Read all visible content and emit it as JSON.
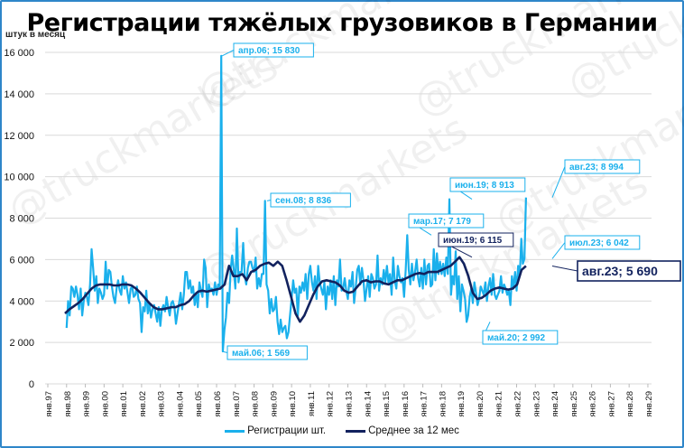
{
  "title": "Регистрации тяжёлых грузовиков в Германии",
  "unit_label": "штук в месяц",
  "watermark": "@truckmarkets",
  "colors": {
    "registrations": "#1ab0ec",
    "average": "#12225e",
    "grid": "#d9d9d9",
    "frame": "#2e86c9"
  },
  "chart_data": {
    "type": "line",
    "title": "Регистрации тяжёлых грузовиков в Германии",
    "xlabel": "",
    "ylabel": "штук в месяц",
    "ylim": [
      0,
      16000
    ],
    "yticks": [
      "0",
      "2 000",
      "4 000",
      "6 000",
      "8 000",
      "10 000",
      "12 000",
      "14 000",
      "16 000"
    ],
    "xticks": [
      "янв.97",
      "янв.98",
      "янв.99",
      "янв.00",
      "янв.01",
      "янв.02",
      "янв.03",
      "янв.04",
      "янв.05",
      "янв.06",
      "янв.07",
      "янв.08",
      "янв.09",
      "янв.10",
      "янв.11",
      "янв.12",
      "янв.13",
      "янв.14",
      "янв.15",
      "янв.16",
      "янв.17",
      "янв.18",
      "янв.19",
      "янв.20",
      "янв.21",
      "янв.22",
      "янв.23",
      "янв.24",
      "янв.25",
      "янв.26",
      "янв.27",
      "янв.28",
      "янв.29"
    ],
    "grid": true,
    "legend_position": "bottom",
    "series": [
      {
        "name": "Регистрации шт.",
        "start": "янв.98",
        "values": [
          2700,
          4000,
          3300,
          4700,
          4600,
          4200,
          4700,
          4300,
          3600,
          4600,
          3300,
          4000,
          4400,
          4200,
          3800,
          4800,
          6500,
          5600,
          4500,
          5200,
          3900,
          4600,
          4400,
          4100,
          4300,
          5900,
          4600,
          5500,
          5400,
          4700,
          4200,
          3900,
          4600,
          5000,
          4500,
          4300,
          5200,
          4600,
          4900,
          4400,
          3900,
          4600,
          4700,
          4200,
          4300,
          4700,
          4100,
          3900,
          2500,
          3700,
          3500,
          4500,
          3400,
          3900,
          3200,
          3600,
          3800,
          3400,
          3000,
          3700,
          2800,
          3600,
          3800,
          3500,
          4200,
          3700,
          3300,
          3900,
          4000,
          3700,
          2900,
          3400,
          3900,
          4400,
          3600,
          4300,
          5400,
          5400,
          4600,
          5000,
          4400,
          4700,
          3800,
          4400,
          3700,
          4900,
          4500,
          4200,
          6000,
          5600,
          3700,
          4800,
          4500,
          4600,
          4300,
          4900,
          4300,
          4800,
          4700,
          15830,
          1569,
          2600,
          3200,
          4400,
          3900,
          5500,
          6200,
          5500,
          4600,
          7500,
          4900,
          5400,
          5400,
          6800,
          5200,
          4800,
          5600,
          5900,
          5900,
          5600,
          5400,
          6100,
          4600,
          5100,
          4700,
          5300,
          5300,
          8836,
          4800,
          4500,
          3400,
          4100,
          3500,
          3600,
          4200,
          3000,
          2400,
          3100,
          2500,
          2700,
          2800,
          2200,
          2500,
          3300,
          4100,
          5000,
          4400,
          4600,
          3300,
          4700,
          4400,
          4900,
          4500,
          5300,
          4100,
          5300,
          5700,
          4900,
          4500,
          5200,
          4100,
          5700,
          4900,
          4600,
          4300,
          4900,
          3600,
          4700,
          4300,
          5000,
          4100,
          5200,
          3800,
          5000,
          4700,
          6000,
          4500,
          4600,
          5100,
          4500,
          4100,
          5000,
          4700,
          5400,
          3900,
          4600,
          5500,
          5700,
          4800,
          5600,
          5000,
          4000,
          4600,
          5200,
          4200,
          5300,
          5100,
          4600,
          4800,
          6200,
          4500,
          5100,
          4800,
          5500,
          4900,
          5700,
          4900,
          5300,
          4300,
          6100,
          5000,
          4600,
          5700,
          5200,
          4900,
          5100,
          4200,
          5500,
          7179,
          5500,
          4800,
          5800,
          5000,
          5400,
          6000,
          5100,
          4700,
          5600,
          4600,
          6000,
          4800,
          5700,
          5800,
          4700,
          4800,
          6500,
          5000,
          6300,
          5300,
          5900,
          5300,
          5800,
          5200,
          6100,
          5300,
          8913,
          4300,
          5200,
          4800,
          6400,
          4100,
          5200,
          3500,
          4800,
          4500,
          4100,
          2992,
          3300,
          4200,
          4600,
          3900,
          4900,
          4400,
          3800,
          4100,
          4700,
          4500,
          4300,
          4900,
          4000,
          4700,
          5100,
          4300,
          5300,
          4300,
          4100,
          4300,
          4500,
          5200,
          4400,
          4800,
          4600,
          4300,
          4500,
          3800,
          5200,
          4600,
          5400,
          4500,
          5700,
          5200,
          7000,
          5800,
          6042,
          8994
        ]
      },
      {
        "name": "Среднее за 12 мес",
        "start": "дек.98",
        "values": [
          3400,
          3600,
          3750,
          3900,
          4100,
          4350,
          4600,
          4750,
          4800,
          4800,
          4800,
          4750,
          4750,
          4800,
          4800,
          4750,
          4600,
          4400,
          4150,
          3900,
          3700,
          3600,
          3600,
          3650,
          3700,
          3700,
          3800,
          3850,
          4000,
          4250,
          4450,
          4500,
          4450,
          4500,
          4550,
          4600,
          4800,
          5700,
          5200,
          5200,
          5300,
          5000,
          5400,
          5500,
          5700,
          5800,
          5850,
          5700,
          5900,
          5700,
          5000,
          4200,
          3400,
          3000,
          3300,
          3800,
          4300,
          4700,
          4950,
          5000,
          4950,
          4900,
          4750,
          4500,
          4400,
          4450,
          4700,
          4950,
          5000,
          4900,
          4950,
          4950,
          4850,
          4800,
          4900,
          5000,
          5000,
          5100,
          5200,
          5300,
          5350,
          5300,
          5400,
          5400,
          5400,
          5500,
          5600,
          5700,
          5900,
          6115,
          5800,
          5200,
          4400,
          4100,
          4150,
          4300,
          4500,
          4600,
          4650,
          4600,
          4550,
          4600,
          4800,
          5500,
          5690
        ]
      }
    ],
    "annotations": [
      {
        "label": "апр.06; 15 830",
        "series": "Регистрации шт.",
        "value": 15830
      },
      {
        "label": "май.06;  1 569",
        "series": "Регистрации шт.",
        "value": 1569
      },
      {
        "label": "сен.08;  8 836",
        "series": "Регистрации шт.",
        "value": 8836
      },
      {
        "label": "мар.17; 7 179",
        "series": "Регистрации шт.",
        "value": 7179
      },
      {
        "label": "июн.19; 8 913",
        "series": "Регистрации шт.",
        "value": 8913
      },
      {
        "label": "июн.19; 6 115",
        "series": "Среднее за 12 мес",
        "value": 6115
      },
      {
        "label": "май.20; 2 992",
        "series": "Регистрации шт.",
        "value": 2992
      },
      {
        "label": "июл.23; 6 042",
        "series": "Регистрации шт.",
        "value": 6042
      },
      {
        "label": "авг.23; 8 994",
        "series": "Регистрации шт.",
        "value": 8994
      },
      {
        "label": "авг.23; 5 690",
        "series": "Среднее за 12 мес",
        "value": 5690
      }
    ]
  },
  "legend": {
    "registrations": "Регистрации шт.",
    "average": "Среднее за 12 мес"
  }
}
